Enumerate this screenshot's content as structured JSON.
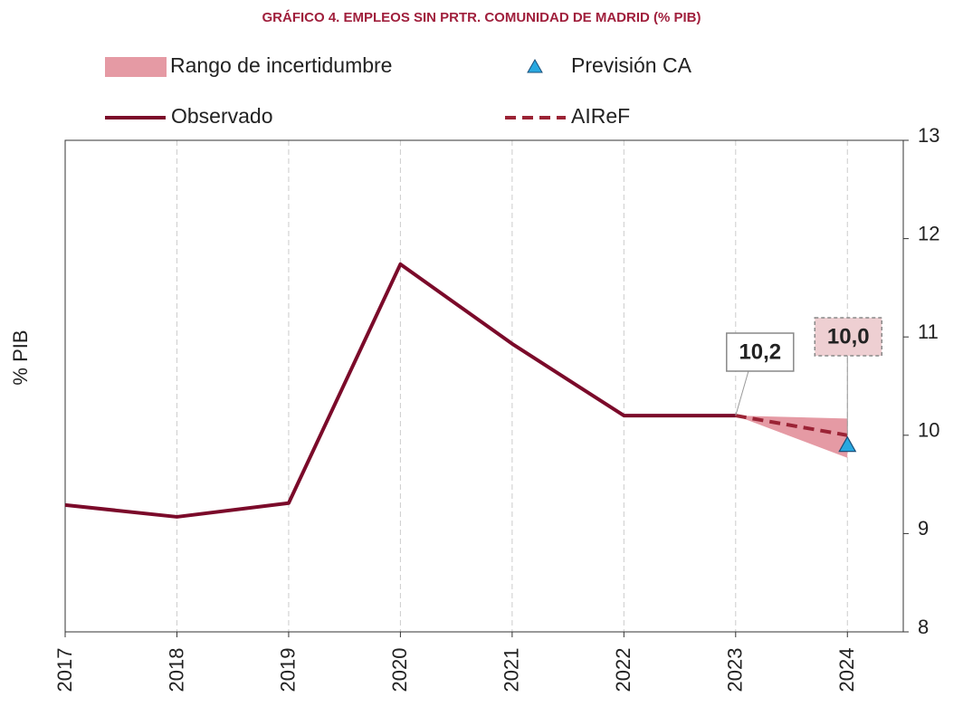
{
  "chart_data": {
    "type": "line",
    "title": "GRÁFICO 4.  EMPLEOS SIN PRTR. COMUNIDAD DE MADRID (% PIB)",
    "ylabel": "% PIB",
    "x": [
      2017,
      2018,
      2019,
      2020,
      2021,
      2022,
      2023,
      2024
    ],
    "xlim": [
      2017,
      2024.5
    ],
    "xticks": [
      2017,
      2018,
      2019,
      2020,
      2021,
      2022,
      2023,
      2024
    ],
    "ylim": [
      8,
      13
    ],
    "yticks": [
      8,
      9,
      10,
      11,
      12,
      13
    ],
    "y_axis_side": "right",
    "grid": "x",
    "series": [
      {
        "name": "Rango de incertidumbre",
        "type": "area",
        "color": "#e59aa4",
        "lower": [
          null,
          null,
          null,
          null,
          null,
          null,
          10.2,
          9.77
        ],
        "upper": [
          null,
          null,
          null,
          null,
          null,
          null,
          10.2,
          10.17
        ]
      },
      {
        "name": "Previsión CA",
        "type": "scatter",
        "color": "#29a8e0",
        "values": [
          null,
          null,
          null,
          null,
          null,
          null,
          null,
          9.9
        ]
      },
      {
        "name": "Observado",
        "type": "line",
        "color": "#7b0a2a",
        "values": [
          9.29,
          9.17,
          9.31,
          11.74,
          10.93,
          10.2,
          10.2,
          null
        ]
      },
      {
        "name": "AIReF",
        "type": "line",
        "dashed": true,
        "color": "#9b2335",
        "values": [
          null,
          null,
          null,
          null,
          null,
          null,
          10.2,
          10.0
        ],
        "value_labels": [
          null,
          null,
          null,
          null,
          null,
          null,
          "10,2",
          "10,0"
        ]
      }
    ]
  }
}
